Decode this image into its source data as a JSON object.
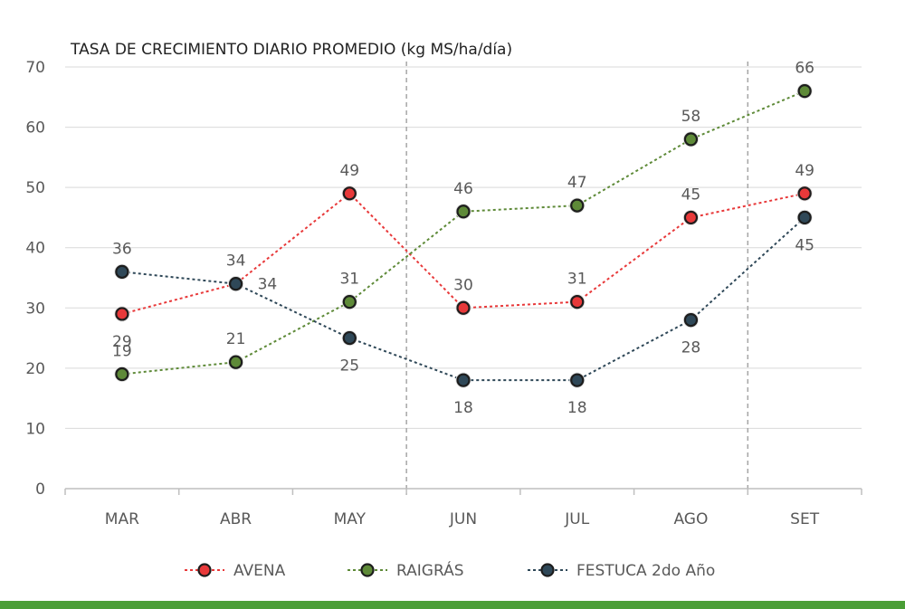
{
  "chart_data": {
    "type": "line",
    "title": "TASA DE CRECIMIENTO DIARIO PROMEDIO (kg MS/ha/día)",
    "xlabel": "",
    "ylabel": "",
    "ylim": [
      0,
      70
    ],
    "yticks": [
      0,
      10,
      20,
      30,
      40,
      50,
      60,
      70
    ],
    "grid": true,
    "legend_position": "bottom",
    "categories": [
      "MAR",
      "ABR",
      "MAY",
      "JUN",
      "JUL",
      "AGO",
      "SET"
    ],
    "vertical_dividers_between": [
      [
        "MAY",
        "JUN"
      ],
      [
        "AGO",
        "SET"
      ]
    ],
    "series": [
      {
        "name": "AVENA",
        "color": "#e8393a",
        "values": [
          29,
          34,
          49,
          30,
          31,
          45,
          49
        ],
        "labels": [
          "29",
          "34",
          "49",
          "30",
          "31",
          "45",
          "49"
        ],
        "label_side": [
          "below",
          "above",
          "above",
          "above",
          "above",
          "above",
          "above"
        ]
      },
      {
        "name": "RAIGRÁS",
        "color": "#5e8a38",
        "values": [
          19,
          21,
          31,
          46,
          47,
          58,
          66
        ],
        "labels": [
          "19",
          "21",
          "31",
          "46",
          "47",
          "58",
          "66"
        ],
        "label_side": [
          "above",
          "above",
          "above",
          "above",
          "above",
          "above",
          "above"
        ]
      },
      {
        "name": "FESTUCA 2do Año",
        "color": "#2f4858",
        "values": [
          36,
          34,
          25,
          18,
          18,
          28,
          45
        ],
        "labels": [
          "36",
          "34",
          "25",
          "18",
          "18",
          "28",
          "45"
        ],
        "label_side": [
          "above",
          "right",
          "below",
          "below",
          "below",
          "below",
          "below"
        ]
      }
    ]
  }
}
